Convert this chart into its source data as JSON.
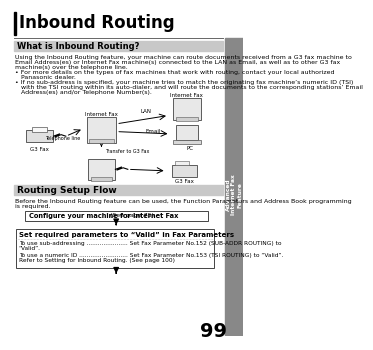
{
  "title": "Inbound Routing",
  "section1_title": "What is Inbound Routing?",
  "section1_body1": "Using the Inbound Routing feature, your machine can route documents received from a G3 fax machine to",
  "section1_body2": "Email Address(es) or Internet Fax machine(s) connected to the LAN as Email, as well as to other G3 fax",
  "section1_body3": "machine(s) over the telephone line.",
  "bullet1a": "• For more details on the types of fax machines that work with routing, contact your local authorized",
  "bullet1b": "   Panasonic dealer.",
  "bullet2a": "• If no sub-address is specified, your machine tries to match the originating fax machine’s numeric ID (TSI)",
  "bullet2b": "   with the TSI routing within its auto-dialer, and will route the documents to the corresponding stations’ Email",
  "bullet2c": "   Address(es) and/or Telephone Number(s).",
  "section2_title": "Routing Setup Flow",
  "section2_body1": "Before the Inbound Routing feature can be used, the Function Parameters and Address Book programming",
  "section2_body2": "is required.",
  "box1_bold": "Configure your machine for Internet Fax",
  "box1_normal": " (See page 75)",
  "box2_title": "Set required parameters to “Valid” in Fax Parameters",
  "box2_line1a": "To use sub-addressing ...................... Set Fax Parameter No.152 (SUB-ADDR ROUTING) to",
  "box2_line1b": "“Valid”.",
  "box2_line2a": "To use a numeric ID .......................... Set Fax Parameter No.153 (TSI ROUTING) to “Valid”.",
  "box2_line2b": "Refer to Setting for Inbound Routing. (See page 100)",
  "page_num": "99",
  "sidebar_lines": [
    "Advanced",
    "Internet Fax",
    "Feature"
  ],
  "bg_color": "#ffffff",
  "sidebar_color": "#888888",
  "section_header_color": "#c8c8c8",
  "diagram_labels": {
    "g3fax": "G3 Fax",
    "telephone": "Telephone line",
    "internet_fax_center": "Internet Fax",
    "lan": "LAN",
    "internet_fax_top": "Internet Fax",
    "email": "Email",
    "pc": "PC",
    "transfer": "Transfer to G3 Fax",
    "g3fax_bottom": "G3 Fax"
  }
}
